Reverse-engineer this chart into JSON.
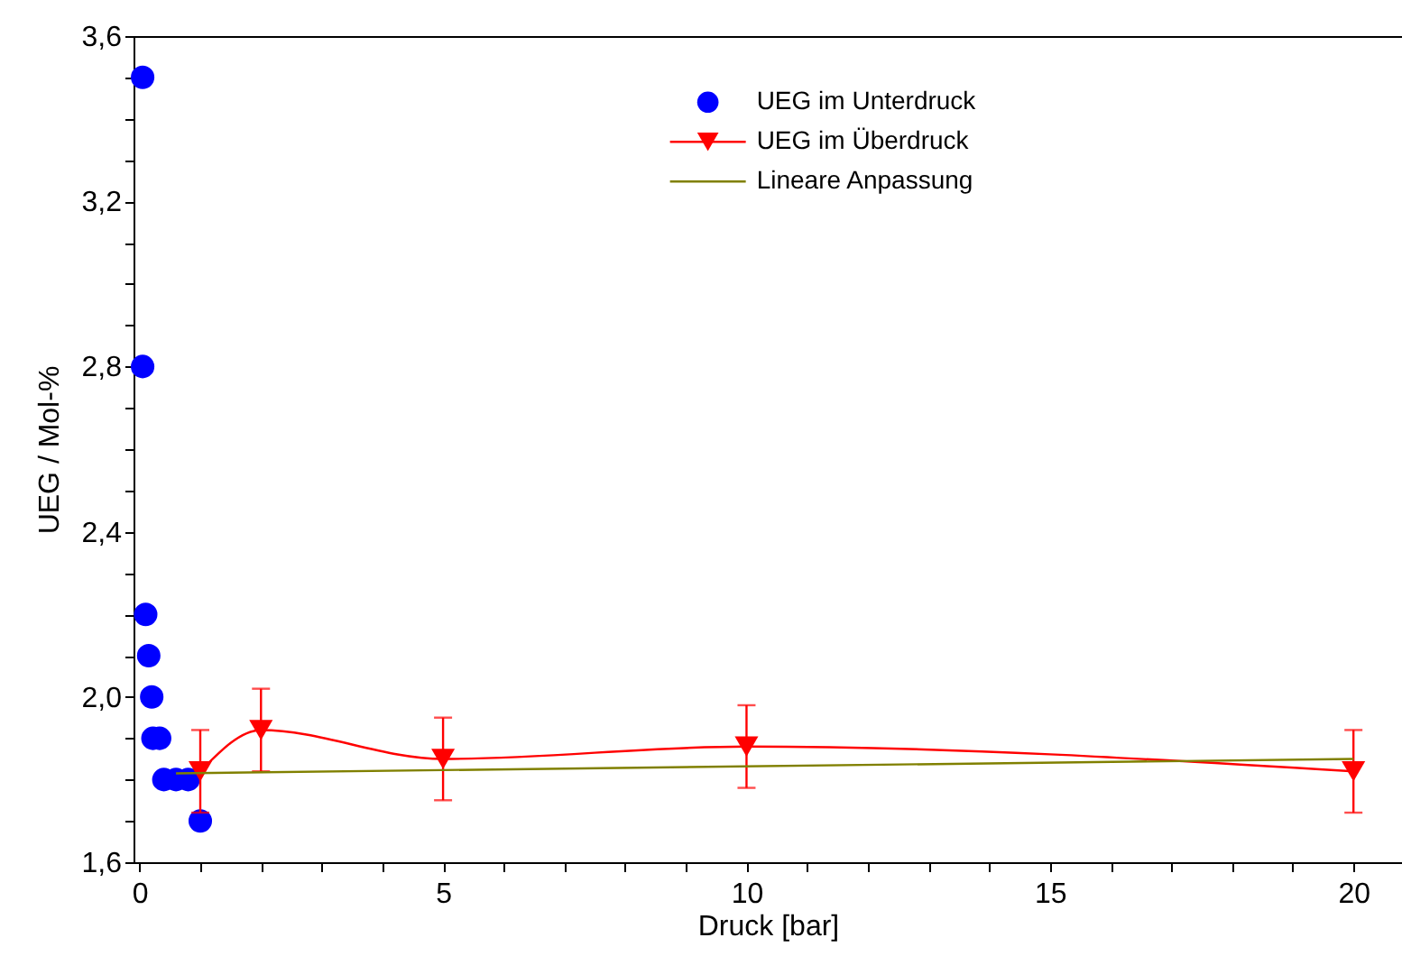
{
  "chart_data": {
    "type": "scatter",
    "xlabel": "Druck [bar]",
    "ylabel": "UEG / Mol-%",
    "xlim": [
      -0.1,
      20.8
    ],
    "ylim": [
      1.6,
      3.6
    ],
    "xticks": [
      0,
      {
        "value": 1,
        "label": null
      },
      {
        "value": 2,
        "label": null
      },
      {
        "value": 3,
        "label": null
      },
      {
        "value": 4,
        "label": null
      },
      5,
      {
        "value": 6,
        "label": null
      },
      {
        "value": 7,
        "label": null
      },
      {
        "value": 8,
        "label": null
      },
      {
        "value": 9,
        "label": null
      },
      10,
      {
        "value": 11,
        "label": null
      },
      {
        "value": 12,
        "label": null
      },
      {
        "value": 13,
        "label": null
      },
      {
        "value": 14,
        "label": null
      },
      15,
      {
        "value": 16,
        "label": null
      },
      {
        "value": 17,
        "label": null
      },
      {
        "value": 18,
        "label": null
      },
      {
        "value": 19,
        "label": null
      },
      20
    ],
    "yticks": [
      {
        "value": 1.6,
        "label": "1,6"
      },
      {
        "value": 1.7,
        "label": null
      },
      {
        "value": 1.8,
        "label": null
      },
      {
        "value": 1.9,
        "label": null
      },
      {
        "value": 2.0,
        "label": "2,0"
      },
      {
        "value": 2.1,
        "label": null
      },
      {
        "value": 2.2,
        "label": null
      },
      {
        "value": 2.3,
        "label": null
      },
      {
        "value": 2.4,
        "label": "2,4"
      },
      {
        "value": 2.5,
        "label": null
      },
      {
        "value": 2.6,
        "label": null
      },
      {
        "value": 2.7,
        "label": null
      },
      {
        "value": 2.8,
        "label": "2,8"
      },
      {
        "value": 2.9,
        "label": null
      },
      {
        "value": 3.0,
        "label": null
      },
      {
        "value": 3.1,
        "label": null
      },
      {
        "value": 3.2,
        "label": "3,2"
      },
      {
        "value": 3.3,
        "label": null
      },
      {
        "value": 3.4,
        "label": null
      },
      {
        "value": 3.5,
        "label": null
      },
      {
        "value": 3.6,
        "label": "3,6"
      }
    ],
    "grid": false,
    "legend": "top",
    "series": [
      {
        "name": "UEG im Unterdruck",
        "marker": "circle",
        "color": "#0000ff",
        "x": [
          0.05,
          0.05,
          0.1,
          0.15,
          0.2,
          0.22,
          0.33,
          0.4,
          0.6,
          0.8,
          1.0
        ],
        "values": [
          3.5,
          2.8,
          2.2,
          2.1,
          2.0,
          1.9,
          1.9,
          1.8,
          1.8,
          1.8,
          1.7
        ]
      },
      {
        "name": "UEG im Überdruck",
        "type": "line",
        "marker": "triangle",
        "line_style": "solid",
        "color": "#ff0000",
        "x": [
          1,
          2,
          5,
          10,
          20
        ],
        "values": [
          1.82,
          1.92,
          1.85,
          1.88,
          1.82
        ],
        "errors": [
          0.1,
          0.1,
          0.1,
          0.1,
          0.1
        ]
      },
      {
        "name": "Lineare Anpassung",
        "type": "line",
        "marker": "none",
        "line_style": "solid",
        "color": "#808000",
        "x": [
          0.6,
          20
        ],
        "values": [
          1.815,
          1.85
        ]
      }
    ]
  }
}
